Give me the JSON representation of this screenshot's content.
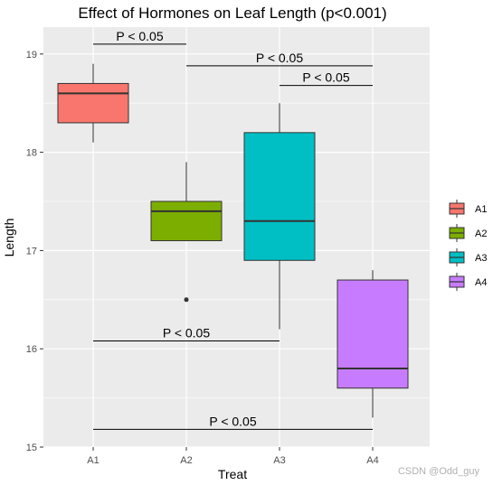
{
  "chart_data": {
    "type": "box",
    "title": "Effect of Hormones on Leaf Length (p<0.001)",
    "xlabel": "Treat",
    "ylabel": "Length",
    "categories": [
      "A1",
      "A2",
      "A3",
      "A4"
    ],
    "ylim": [
      15,
      19.3
    ],
    "yticks": [
      15,
      16,
      17,
      18,
      19
    ],
    "grid": true,
    "legend_position": "right",
    "series": [
      {
        "name": "A1",
        "color": "#F8766D",
        "min": 18.1,
        "q1": 18.3,
        "median": 18.6,
        "q3": 18.7,
        "max": 18.9,
        "outliers": []
      },
      {
        "name": "A2",
        "color": "#7CAE00",
        "min": 17.1,
        "q1": 17.1,
        "median": 17.4,
        "q3": 17.5,
        "max": 17.9,
        "outliers": [
          16.5
        ]
      },
      {
        "name": "A3",
        "color": "#00BFC4",
        "min": 16.2,
        "q1": 16.9,
        "median": 17.3,
        "q3": 18.2,
        "max": 18.5,
        "outliers": []
      },
      {
        "name": "A4",
        "color": "#C77CFF",
        "min": 15.3,
        "q1": 15.6,
        "median": 15.8,
        "q3": 16.7,
        "max": 16.8,
        "outliers": []
      }
    ],
    "annotations": [
      {
        "label": "P < 0.05",
        "from": "A1",
        "to": "A2",
        "y": 19.1
      },
      {
        "label": "P < 0.05",
        "from": "A2",
        "to": "A4",
        "y": 18.88
      },
      {
        "label": "P < 0.05",
        "from": "A3",
        "to": "A4",
        "y": 18.68
      },
      {
        "label": "P < 0.05",
        "from": "A1",
        "to": "A3",
        "y": 16.08
      },
      {
        "label": "P < 0.05",
        "from": "A1",
        "to": "A4",
        "y": 15.18
      }
    ]
  },
  "watermark": "CSDN @Odd_guy"
}
